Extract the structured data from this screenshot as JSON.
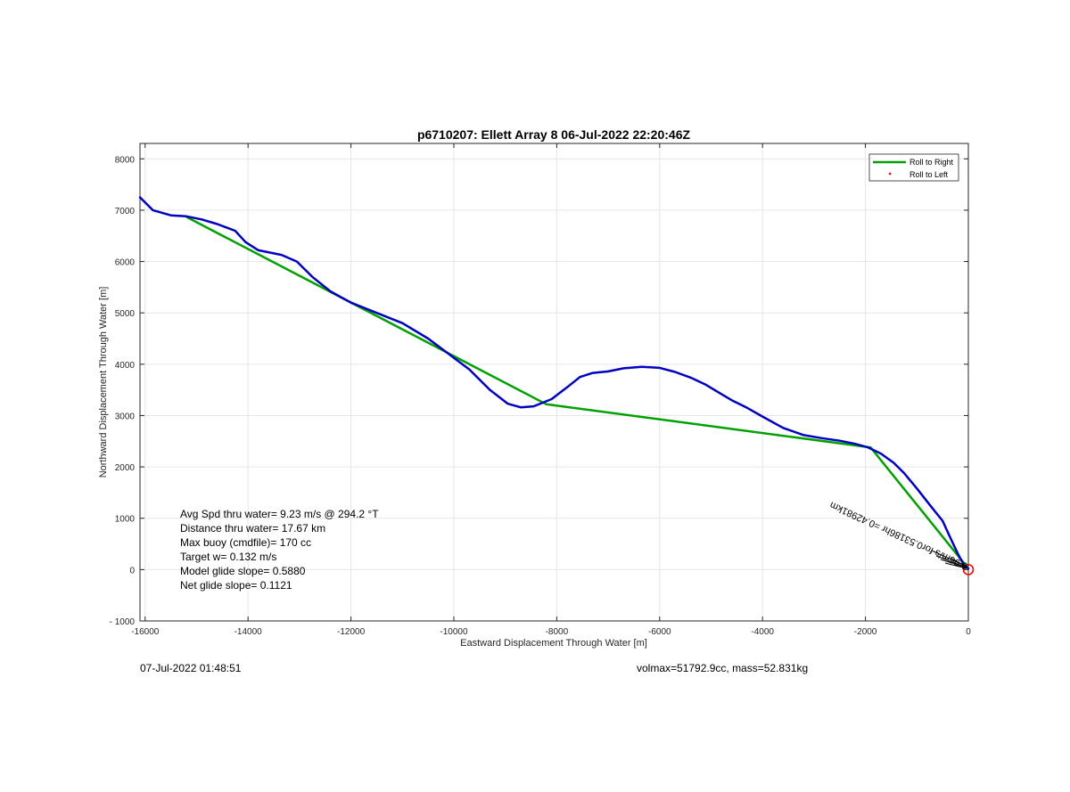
{
  "chart_data": {
    "type": "line",
    "title": "p6710207: Ellett Array 8 06-Jul-2022 22:20:46Z",
    "xlabel": "Eastward Displacement Through Water [m]",
    "ylabel": "Northward Displacement Through Water [m]",
    "xlim": [
      -16100,
      0
    ],
    "ylim": [
      -1000,
      8300
    ],
    "xticks": [
      -16000,
      -14000,
      -12000,
      -10000,
      -8000,
      -6000,
      -4000,
      -2000,
      0
    ],
    "yticks": [
      -1000,
      0,
      1000,
      2000,
      3000,
      4000,
      5000,
      6000,
      7000,
      8000
    ],
    "xtick_labels": [
      "-16000",
      "-14000",
      "-12000",
      "-10000",
      "-8000",
      "-6000",
      "-4000",
      "-2000",
      "0"
    ],
    "ytick_labels": [
      "- 1000",
      "0",
      "1000",
      "2000",
      "3000",
      "4000",
      "5000",
      "6000",
      "7000",
      "8000"
    ],
    "grid": true,
    "legend_position": "top-right",
    "series": [
      {
        "name": "Roll to Right",
        "color": "#00a000",
        "x": [
          -15200,
          -8200,
          -1900,
          0
        ],
        "y": [
          6870,
          3220,
          2380,
          20
        ]
      },
      {
        "name": "Roll to Left",
        "color": "#ff0000",
        "marker": "dot",
        "x": [],
        "y": []
      },
      {
        "color": "#0000c0",
        "x": [
          -16100,
          -15850,
          -15500,
          -15200,
          -14900,
          -14600,
          -14250,
          -14050,
          -13800,
          -13350,
          -13050,
          -12750,
          -12400,
          -12000,
          -11500,
          -11000,
          -10500,
          -10100,
          -9700,
          -9300,
          -8950,
          -8700,
          -8450,
          -8100,
          -7800,
          -7550,
          -7300,
          -7000,
          -6700,
          -6350,
          -6000,
          -5700,
          -5400,
          -5100,
          -4800,
          -4600,
          -4300,
          -4000,
          -3600,
          -3200,
          -2850,
          -2500,
          -2200,
          -1950,
          -1700,
          -1450,
          -1250,
          -1000,
          -750,
          -500,
          -350,
          -200,
          -80,
          0
        ],
        "y": [
          7250,
          7000,
          6900,
          6880,
          6820,
          6730,
          6600,
          6380,
          6220,
          6130,
          6000,
          5700,
          5420,
          5200,
          5000,
          4800,
          4500,
          4200,
          3900,
          3500,
          3230,
          3160,
          3180,
          3320,
          3550,
          3750,
          3830,
          3860,
          3920,
          3950,
          3930,
          3850,
          3740,
          3600,
          3420,
          3300,
          3150,
          2980,
          2760,
          2620,
          2560,
          2510,
          2450,
          2380,
          2260,
          2080,
          1880,
          1580,
          1260,
          950,
          620,
          300,
          80,
          20
        ]
      }
    ],
    "annotations": [
      "Avg Spd thru water=  9.23 m/s @ 294.2 °T",
      "Distance thru water= 17.67 km",
      "Max buoy (cmdfile)= 170 cc",
      "Target w= 0.132 m/s",
      "Model glide slope= 0.5880",
      "Net glide slope= 0.1121"
    ],
    "rotated_label": "0.96m/s for0.53186hr =0.42981km",
    "end_marker": {
      "x": 0,
      "y": 0,
      "color": "#ff0000"
    }
  },
  "footer": {
    "timestamp": "07-Jul-2022 01:48:51",
    "vol_mass": "volmax=51792.9cc, mass=52.831kg"
  }
}
